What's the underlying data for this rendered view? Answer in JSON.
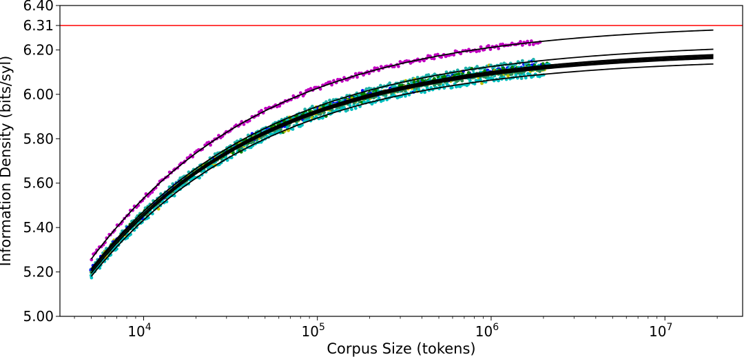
{
  "chart_data": {
    "type": "scatter",
    "xlabel": "Corpus Size (tokens)",
    "ylabel": "Information Density (bits/syl)",
    "xscale": "log",
    "xlim": [
      3300,
      28000000
    ],
    "ylim": [
      5.0,
      6.4
    ],
    "yticks": [
      {
        "value": 5.0,
        "label": "5.00"
      },
      {
        "value": 5.2,
        "label": "5.20"
      },
      {
        "value": 5.4,
        "label": "5.40"
      },
      {
        "value": 5.6,
        "label": "5.60"
      },
      {
        "value": 5.8,
        "label": "5.80"
      },
      {
        "value": 6.0,
        "label": "6.00"
      },
      {
        "value": 6.2,
        "label": "6.20"
      },
      {
        "value": 6.31,
        "label": "6.31"
      },
      {
        "value": 6.4,
        "label": "6.40"
      }
    ],
    "xticks": [
      {
        "value": 10000,
        "base": "10",
        "exp": "4"
      },
      {
        "value": 100000,
        "base": "10",
        "exp": "5"
      },
      {
        "value": 1000000,
        "base": "10",
        "exp": "6"
      },
      {
        "value": 10000000,
        "base": "10",
        "exp": "7"
      }
    ],
    "grid": false,
    "hline": {
      "y": 6.31,
      "color": "#ff0000"
    },
    "fit_x_range": [
      5000,
      19000000
    ],
    "series": [
      {
        "color": "#c000c0",
        "asymptote": 6.32,
        "drop": 1.062,
        "exponent": 0.43,
        "x_max": 1900000
      },
      {
        "color": "#20b2aa",
        "asymptote": 6.235,
        "drop": 1.02,
        "exponent": 0.42,
        "x_max": 1800000
      },
      {
        "color": "#0000ff",
        "asymptote": 6.21,
        "drop": 1.0,
        "exponent": 0.42,
        "x_max": 2100000
      },
      {
        "color": "#008000",
        "asymptote": 6.205,
        "drop": 1.0,
        "exponent": 0.43,
        "x_max": 2200000
      },
      {
        "color": "#bfbf00",
        "asymptote": 6.195,
        "drop": 1.0,
        "exponent": 0.43,
        "x_max": 2200000
      },
      {
        "color": "#00bfbf",
        "asymptote": 6.2,
        "drop": 1.005,
        "exponent": 0.43,
        "x_max": 2200000
      },
      {
        "color": "#2e8b57",
        "asymptote": 6.19,
        "drop": 0.995,
        "exponent": 0.43,
        "x_max": 2000000
      },
      {
        "color": "#00bfbf",
        "asymptote": 6.165,
        "drop": 0.985,
        "exponent": 0.43,
        "x_max": 2000000
      }
    ]
  }
}
